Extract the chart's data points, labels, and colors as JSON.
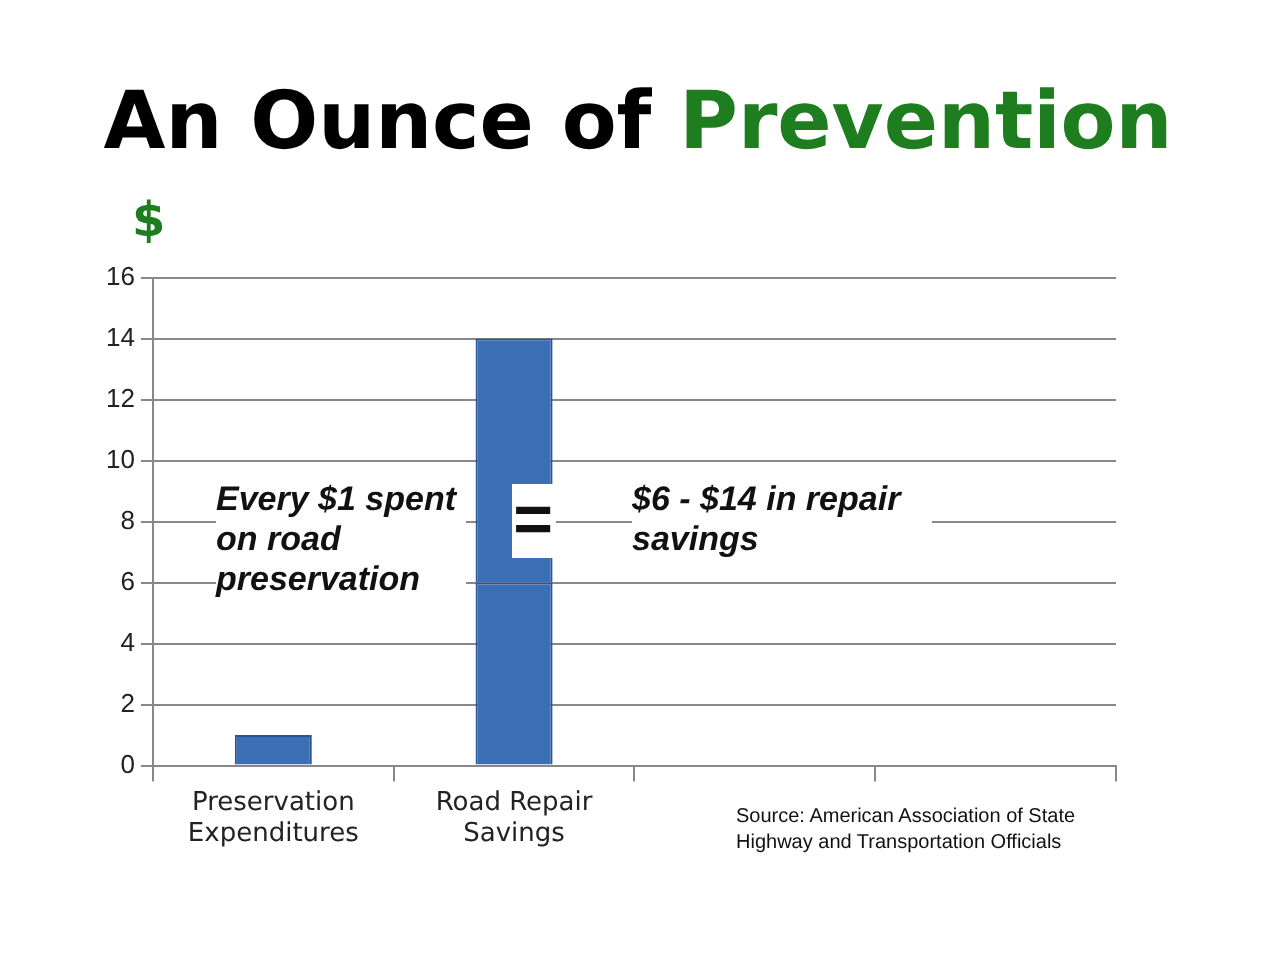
{
  "chart_data": {
    "type": "bar",
    "title": "An Ounce of Prevention",
    "ylabel": "$",
    "categories": [
      "Preservation Expenditures",
      "Road Repair Savings",
      null,
      null
    ],
    "series": [
      {
        "color": "#3a6fb5",
        "values": [
          1,
          6,
          null,
          null
        ]
      },
      {
        "color": "#3a6fb5",
        "values": [
          null,
          8,
          null,
          null
        ]
      }
    ],
    "stacked": true,
    "ylim": [
      0,
      16
    ],
    "yticks": [
      0,
      2,
      4,
      6,
      8,
      10,
      12,
      14,
      16
    ],
    "grid": "y",
    "legend": false,
    "annotations": [
      "Every $1 spent on road preservation",
      "=",
      "$6 - $14 in repair savings",
      "Source: American Association of State Highway and Transportation Officials"
    ]
  }
}
